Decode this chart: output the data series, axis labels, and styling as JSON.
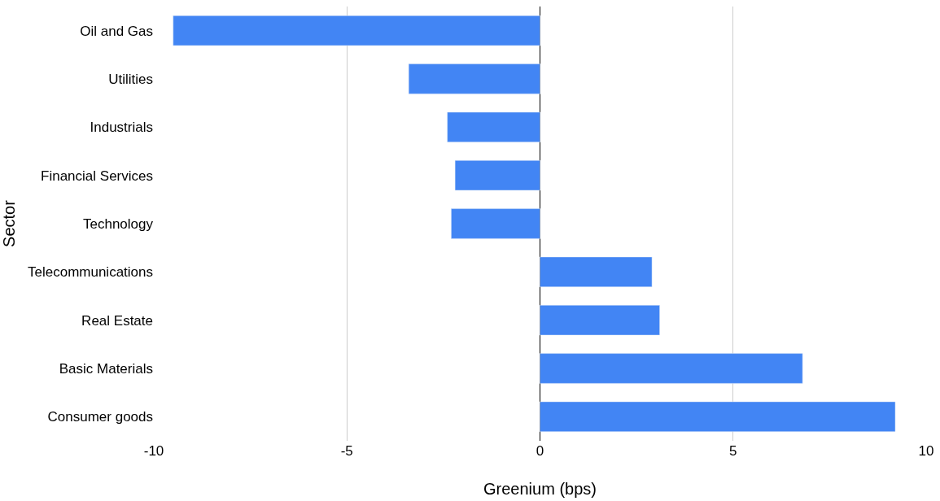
{
  "chart_data": {
    "type": "bar",
    "orientation": "horizontal",
    "xlabel": "Greenium (bps)",
    "ylabel": "Sector",
    "categories": [
      "Oil and Gas",
      "Utilities",
      "Industrials",
      "Financial Services",
      "Technology",
      "Telecommunications",
      "Real Estate",
      "Basic Materials",
      "Consumer goods"
    ],
    "series": [
      {
        "color": "#4285f4",
        "values": [
          -9.5,
          -3.4,
          -2.4,
          -2.2,
          -2.3,
          2.9,
          3.1,
          6.8,
          9.2
        ]
      }
    ],
    "xlim": [
      -10,
      10
    ],
    "xticks": [
      -10,
      -5,
      0,
      5,
      10
    ],
    "grid": "x",
    "legend": false
  }
}
